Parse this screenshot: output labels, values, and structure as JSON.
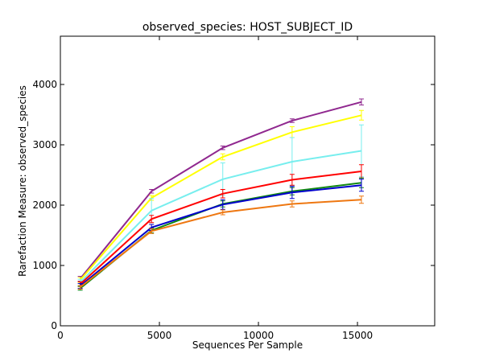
{
  "chart_data": {
    "type": "line",
    "title": "observed_species: HOST_SUBJECT_ID",
    "xlabel": "Sequences Per Sample",
    "ylabel": "Rarefaction Measure: observed_species",
    "xlim": [
      0,
      18900
    ],
    "ylim": [
      0,
      4800
    ],
    "x_ticks": [
      0,
      5000,
      10000,
      15000
    ],
    "y_ticks": [
      0,
      1000,
      2000,
      3000,
      4000
    ],
    "x": [
      1000,
      4600,
      8200,
      11700,
      15200
    ],
    "grid": false,
    "legend": "none",
    "series": [
      {
        "color": "#90288f",
        "values": [
          780,
          2230,
          2950,
          3400,
          3710
        ],
        "err": [
          40,
          30,
          30,
          30,
          50
        ]
      },
      {
        "color": "#ffff00",
        "values": [
          760,
          2120,
          2800,
          3210,
          3490
        ],
        "err": [
          40,
          40,
          50,
          90,
          80
        ]
      },
      {
        "color": "#77eeee",
        "values": [
          720,
          1910,
          2430,
          2720,
          2900
        ],
        "err": [
          50,
          200,
          270,
          400,
          430
        ]
      },
      {
        "color": "#ff0000",
        "values": [
          690,
          1770,
          2190,
          2420,
          2560
        ],
        "err": [
          40,
          60,
          70,
          90,
          110
        ]
      },
      {
        "color": "#118811",
        "values": [
          620,
          1580,
          2020,
          2230,
          2370
        ],
        "err": [
          30,
          40,
          50,
          60,
          80
        ]
      },
      {
        "color": "#0000cc",
        "values": [
          660,
          1630,
          2010,
          2210,
          2330
        ],
        "err": [
          40,
          50,
          80,
          100,
          100
        ]
      },
      {
        "color": "#ee7711",
        "values": [
          640,
          1570,
          1880,
          2020,
          2090
        ],
        "err": [
          30,
          40,
          40,
          50,
          60
        ]
      }
    ]
  }
}
